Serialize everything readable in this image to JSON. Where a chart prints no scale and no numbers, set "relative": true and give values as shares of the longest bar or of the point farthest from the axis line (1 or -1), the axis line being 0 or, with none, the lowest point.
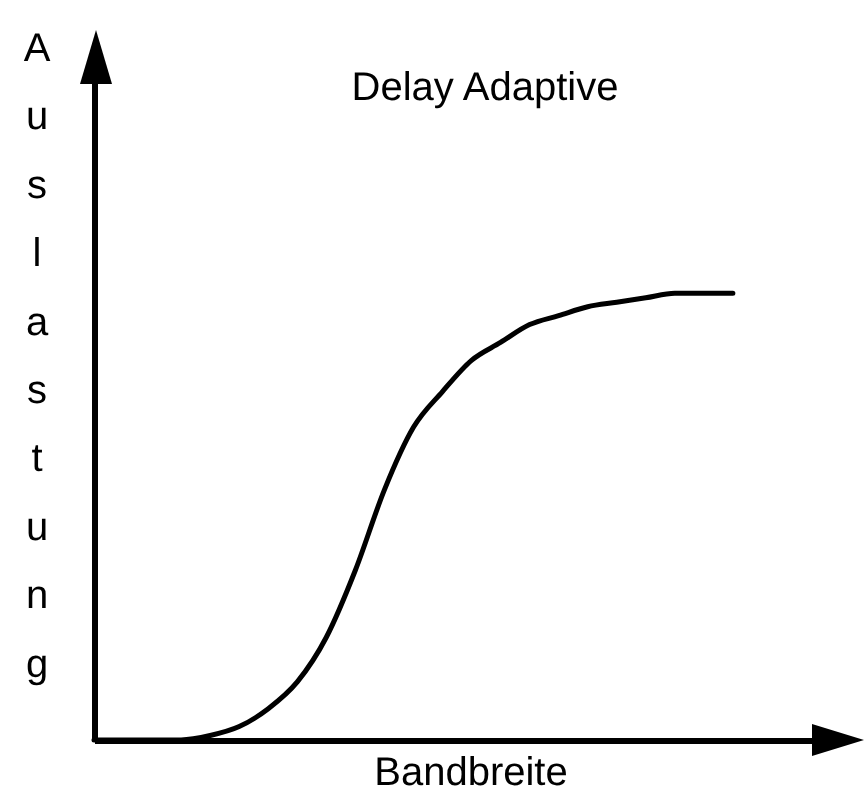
{
  "chart_data": {
    "type": "line",
    "title": "Delay Adaptive",
    "xlabel": "Bandbreite",
    "ylabel": "Auslastung",
    "categories": [
      null,
      null,
      null,
      null,
      null,
      null,
      null,
      null,
      null,
      null,
      null,
      null,
      null,
      null,
      null,
      null,
      null,
      null,
      null,
      null,
      null,
      null,
      null
    ],
    "values": [
      0,
      0,
      0,
      0,
      0.01,
      0.03,
      0.07,
      0.13,
      0.23,
      0.38,
      0.56,
      0.7,
      0.78,
      0.85,
      0.89,
      0.93,
      0.95,
      0.97,
      0.98,
      0.99,
      1,
      1,
      1
    ],
    "color": "#000000",
    "relative": true
  }
}
